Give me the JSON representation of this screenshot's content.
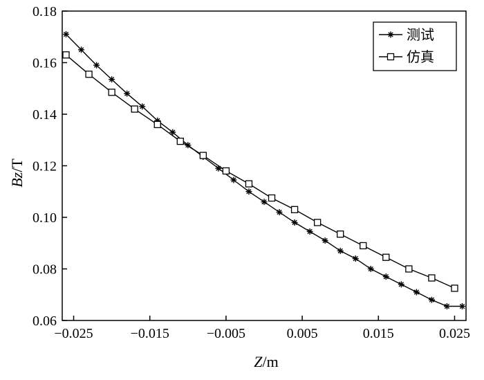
{
  "chart_data": {
    "type": "line",
    "xlabel": {
      "var": "Z",
      "unit": "/m"
    },
    "ylabel": {
      "var": "B",
      "sub": "z",
      "unit": "/T"
    },
    "xlim": [
      -0.0265,
      0.0265
    ],
    "ylim": [
      0.06,
      0.18
    ],
    "x_ticks": [
      -0.025,
      -0.015,
      -0.005,
      0.005,
      0.015,
      0.025
    ],
    "x_tick_labels": [
      "−0.025",
      "−0.015",
      "−0.005",
      "0.005",
      "0.015",
      "0.025"
    ],
    "y_ticks": [
      0.06,
      0.08,
      0.1,
      0.12,
      0.14,
      0.16,
      0.18
    ],
    "y_tick_labels": [
      "0.06",
      "0.08",
      "0.10",
      "0.12",
      "0.14",
      "0.16",
      "0.18"
    ],
    "legend_position": "top-right",
    "series": [
      {
        "name": "测试",
        "marker": "star",
        "color": "#000000",
        "x": [
          -0.026,
          -0.024,
          -0.022,
          -0.02,
          -0.018,
          -0.016,
          -0.014,
          -0.012,
          -0.01,
          -0.008,
          -0.006,
          -0.004,
          -0.002,
          0.0,
          0.002,
          0.004,
          0.006,
          0.008,
          0.01,
          0.012,
          0.014,
          0.016,
          0.018,
          0.02,
          0.022,
          0.024,
          0.026
        ],
        "values": [
          0.171,
          0.165,
          0.159,
          0.1535,
          0.148,
          0.143,
          0.1375,
          0.133,
          0.128,
          0.1235,
          0.119,
          0.1145,
          0.11,
          0.106,
          0.102,
          0.098,
          0.0945,
          0.091,
          0.087,
          0.084,
          0.08,
          0.077,
          0.074,
          0.071,
          0.068,
          0.0655,
          0.0655
        ]
      },
      {
        "name": "仿真",
        "marker": "square",
        "color": "#000000",
        "x": [
          -0.026,
          -0.023,
          -0.02,
          -0.017,
          -0.014,
          -0.011,
          -0.008,
          -0.005,
          -0.002,
          0.001,
          0.004,
          0.007,
          0.01,
          0.013,
          0.016,
          0.019,
          0.022,
          0.025
        ],
        "values": [
          0.163,
          0.1555,
          0.1485,
          0.142,
          0.136,
          0.1295,
          0.124,
          0.118,
          0.113,
          0.1075,
          0.103,
          0.098,
          0.0935,
          0.089,
          0.0845,
          0.08,
          0.0765,
          0.0725
        ]
      }
    ]
  }
}
